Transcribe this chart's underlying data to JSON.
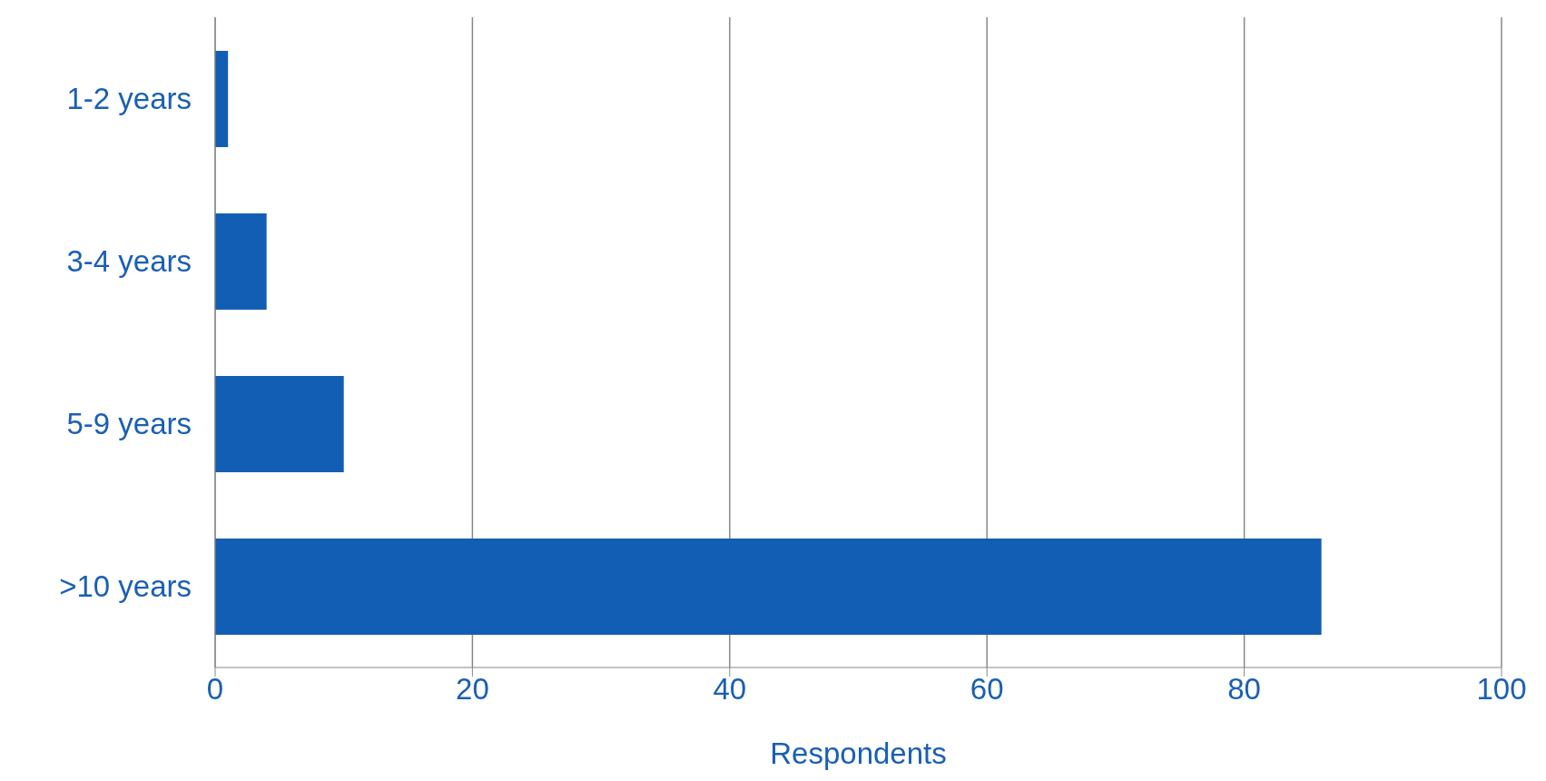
{
  "chart_data": {
    "type": "bar",
    "orientation": "horizontal",
    "xlabel": "Respondents",
    "categories": [
      "1-2 years",
      "3-4 years",
      "5-9 years",
      ">10 years"
    ],
    "values": [
      1,
      4,
      10,
      86
    ],
    "color": "#125eb4",
    "xlim": [
      0,
      100
    ],
    "xticks": [
      0,
      20,
      40,
      60,
      80,
      100
    ],
    "grid": "x"
  }
}
